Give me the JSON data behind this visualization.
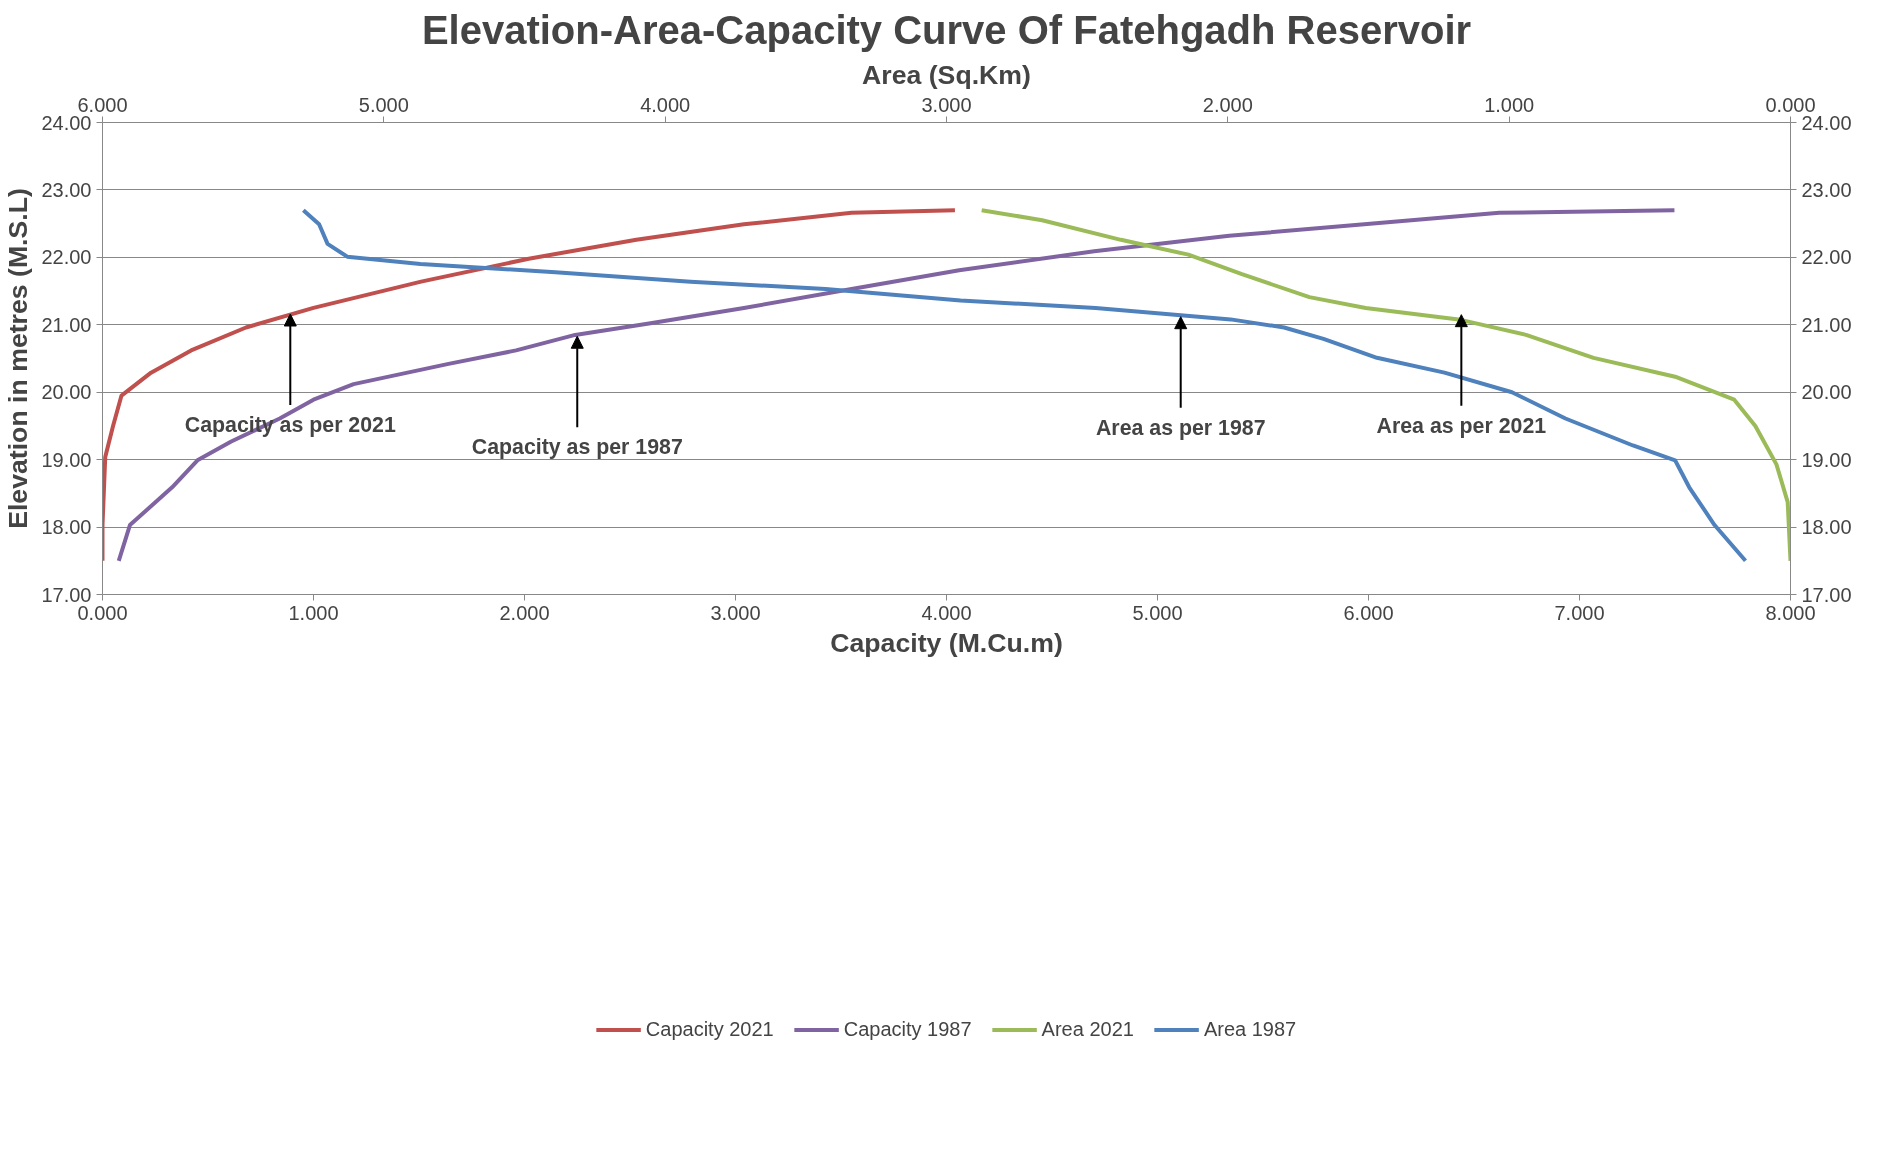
{
  "chart_data": {
    "type": "line",
    "title": "Elevation-Area-Capacity Curve Of Fatehgadh Reservoir",
    "xlabel": "Capacity (M.Cu.m)",
    "ylabel": "Elevation in metres (M.S.L)",
    "x2label": "Area (Sq.Km)",
    "xlim": [
      0,
      8
    ],
    "xticks": [
      {
        "value": 0,
        "label": "0.000"
      },
      {
        "value": 1,
        "label": "1.000"
      },
      {
        "value": 2,
        "label": "2.000"
      },
      {
        "value": 3,
        "label": "3.000"
      },
      {
        "value": 4,
        "label": "4.000"
      },
      {
        "value": 5,
        "label": "5.000"
      },
      {
        "value": 6,
        "label": "6.000"
      },
      {
        "value": 7,
        "label": "7.000"
      },
      {
        "value": 8,
        "label": "8.000"
      }
    ],
    "x2lim": [
      6,
      0
    ],
    "x2ticks": [
      {
        "value": 6,
        "label": "6.000"
      },
      {
        "value": 5,
        "label": "5.000"
      },
      {
        "value": 4,
        "label": "4.000"
      },
      {
        "value": 3,
        "label": "3.000"
      },
      {
        "value": 2,
        "label": "2.000"
      },
      {
        "value": 1,
        "label": "1.000"
      },
      {
        "value": 0,
        "label": "0.000"
      }
    ],
    "ylim": [
      17,
      24
    ],
    "yticks": [
      {
        "value": 17,
        "label": "17.00"
      },
      {
        "value": 18,
        "label": "18.00"
      },
      {
        "value": 19,
        "label": "19.00"
      },
      {
        "value": 20,
        "label": "20.00"
      },
      {
        "value": 21,
        "label": "21.00"
      },
      {
        "value": 22,
        "label": "22.00"
      },
      {
        "value": 23,
        "label": "23.00"
      },
      {
        "value": 24,
        "label": "24.00"
      }
    ],
    "y2lim": [
      17,
      24
    ],
    "y2ticks": [
      {
        "value": 17,
        "label": "17.00"
      },
      {
        "value": 18,
        "label": "18.00"
      },
      {
        "value": 19,
        "label": "19.00"
      },
      {
        "value": 20,
        "label": "20.00"
      },
      {
        "value": 21,
        "label": "21.00"
      },
      {
        "value": 22,
        "label": "22.00"
      },
      {
        "value": 23,
        "label": "23.00"
      },
      {
        "value": 24,
        "label": "24.00"
      }
    ],
    "grid": "y",
    "legend": "bottom",
    "marker": "none",
    "line_style": "solid",
    "series": [
      {
        "name": "Capacity 2021",
        "color": "#c0504d",
        "x": [
          0,
          0,
          0.013,
          0.05,
          0.09,
          0.23,
          0.42,
          0.68,
          1.0,
          1.51,
          2.02,
          2.53,
          3.04,
          3.55,
          4.04
        ],
        "values": [
          17.5,
          18.03,
          19.04,
          19.5,
          19.95,
          20.29,
          20.62,
          20.96,
          21.25,
          21.64,
          21.98,
          22.26,
          22.49,
          22.66,
          22.7
        ]
      },
      {
        "name": "Capacity 1987",
        "color": "#8064a2",
        "x": [
          0.077,
          0.13,
          0.33,
          0.45,
          0.61,
          0.84,
          1.0,
          1.19,
          1.64,
          1.96,
          2.24,
          2.59,
          3.04,
          3.55,
          4.06,
          4.7,
          5.34,
          5.98,
          6.62,
          7.45
        ],
        "values": [
          17.5,
          18.03,
          18.59,
          18.99,
          19.27,
          19.61,
          19.89,
          20.12,
          20.42,
          20.62,
          20.85,
          21.02,
          21.25,
          21.53,
          21.81,
          22.09,
          22.32,
          22.49,
          22.66,
          22.7
        ]
      },
      {
        "name": "Area 2021",
        "color": "#9bbb59",
        "axis": "x2",
        "x": [
          2.875,
          2.66,
          2.38,
          2.14,
          1.95,
          1.71,
          1.51,
          1.18,
          0.94,
          0.7,
          0.41,
          0.2,
          0.125,
          0.05,
          0.01,
          0
        ],
        "values": [
          22.7,
          22.55,
          22.26,
          22.04,
          21.75,
          21.41,
          21.25,
          21.08,
          20.85,
          20.51,
          20.23,
          19.89,
          19.5,
          18.93,
          18.37,
          17.5
        ]
      },
      {
        "name": "Area 1987",
        "color": "#4f81bd",
        "axis": "x2",
        "x": [
          5.286,
          5.23,
          5.2,
          5.13,
          4.87,
          4.39,
          3.91,
          3.43,
          2.95,
          2.47,
          1.99,
          1.8,
          1.66,
          1.47,
          1.23,
          0.99,
          0.8,
          0.56,
          0.41,
          0.36,
          0.27,
          0.16
        ],
        "values": [
          22.7,
          22.49,
          22.2,
          22.01,
          21.9,
          21.78,
          21.64,
          21.53,
          21.36,
          21.25,
          21.08,
          20.96,
          20.79,
          20.51,
          20.29,
          20.0,
          19.61,
          19.21,
          18.99,
          18.59,
          18.03,
          17.5
        ]
      }
    ],
    "annotations": [
      {
        "text": "Capacity as per 2021",
        "x": 0.89,
        "y": 21.16
      },
      {
        "text": "Capacity as per 1987",
        "x": 2.25,
        "y": 20.83
      },
      {
        "text": "Area as per 1987",
        "x": 5.11,
        "y": 21.12
      },
      {
        "text": "Area as per 2021",
        "x": 6.44,
        "y": 21.15
      }
    ]
  }
}
